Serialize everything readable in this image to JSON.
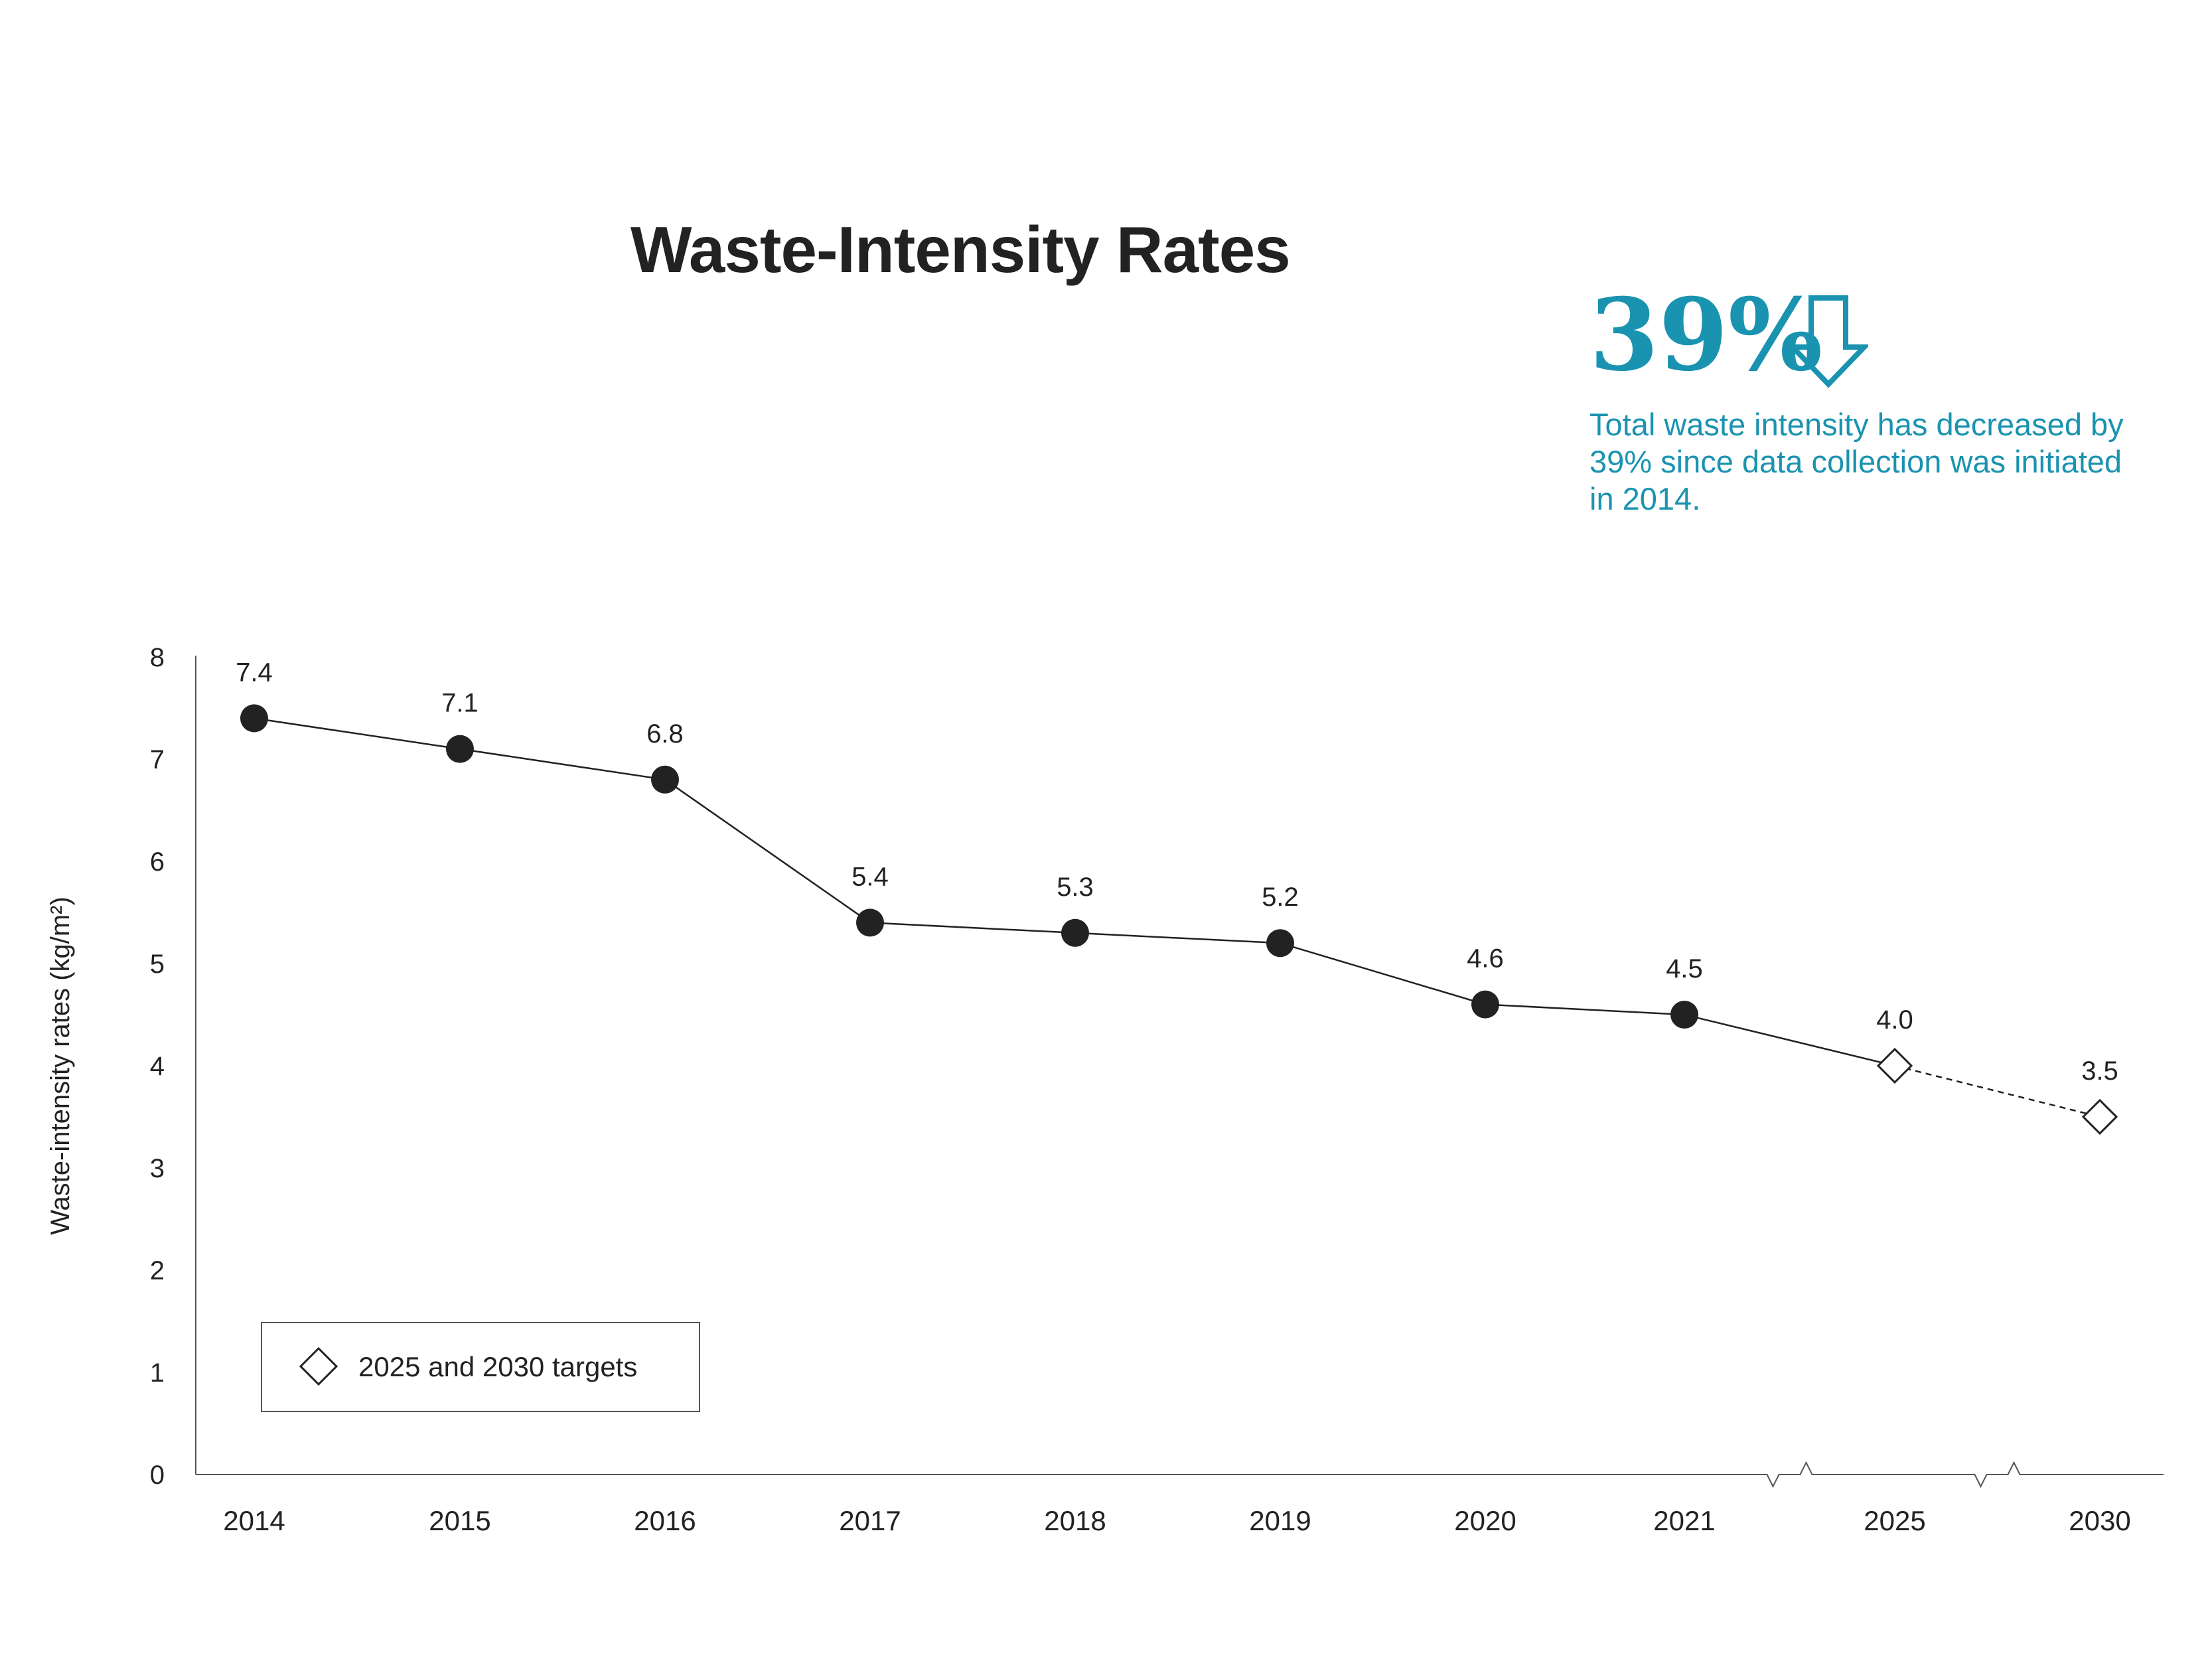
{
  "title": "Waste-Intensity Rates",
  "callout": {
    "stat": "39%",
    "arrow_icon": "down-arrow-icon",
    "text": "Total waste intensity has decreased by 39% since data collection was initiated in 2014."
  },
  "colors": {
    "accent": "#1A93B0",
    "ink": "#222222",
    "axis": "#555555"
  },
  "legend": {
    "label": "2025 and 2030 targets",
    "icon": "diamond-icon"
  },
  "chart_data": {
    "type": "line",
    "ylabel": "Waste-intensity rates (kg/m²)",
    "xlabel": "",
    "ylim": [
      0,
      8
    ],
    "yticks": [
      0,
      1,
      2,
      3,
      4,
      5,
      6,
      7,
      8
    ],
    "grid": false,
    "legend_position": "bottom-left",
    "axis_breaks_between": [
      [
        "2021",
        "2025"
      ],
      [
        "2025",
        "2030"
      ]
    ],
    "categories": [
      "2014",
      "2015",
      "2016",
      "2017",
      "2018",
      "2019",
      "2020",
      "2021",
      "2025",
      "2030"
    ],
    "series": [
      {
        "values": [
          7.4,
          7.1,
          6.8,
          5.4,
          5.3,
          5.2,
          4.6,
          4.5,
          null,
          null
        ],
        "labels": [
          "7.4",
          "7.1",
          "6.8",
          "5.4",
          "5.3",
          "5.2",
          "4.6",
          "4.5",
          null,
          null
        ],
        "marker": "circle",
        "line": "solid"
      },
      {
        "name": "2025 and 2030 targets",
        "values": [
          null,
          null,
          null,
          null,
          null,
          null,
          null,
          null,
          4.0,
          3.5
        ],
        "labels": [
          null,
          null,
          null,
          null,
          null,
          null,
          null,
          null,
          "4.0",
          "3.5"
        ],
        "marker": "diamond",
        "line": "dashed"
      }
    ]
  }
}
